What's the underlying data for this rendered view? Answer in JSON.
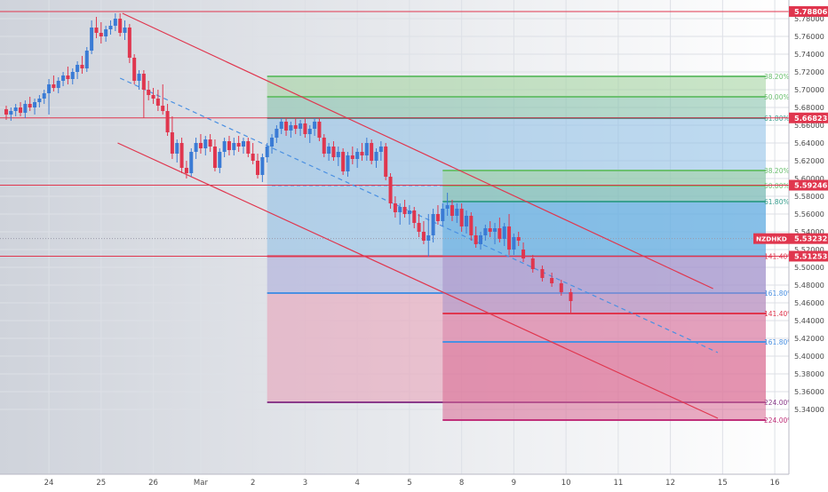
{
  "chart_data": {
    "type": "candlestick",
    "symbol": "NZDHKD",
    "y_range": [
      5.328,
      5.79
    ],
    "y_tick_values": [
      5.34,
      5.36,
      5.38,
      5.4,
      5.42,
      5.44,
      5.46,
      5.48,
      5.5,
      5.52,
      5.54,
      5.56,
      5.58,
      5.6,
      5.62,
      5.64,
      5.66,
      5.68,
      5.7,
      5.72,
      5.74,
      5.76,
      5.78
    ],
    "y_tick_labels": [
      "5.34000",
      "5.36000",
      "5.38000",
      "5.40000",
      "5.42000",
      "5.44000",
      "5.46000",
      "5.48000",
      "5.50000",
      "5.52000",
      "5.54000",
      "5.56000",
      "5.58000",
      "5.60000",
      "5.62000",
      "5.64000",
      "5.66000",
      "5.68000",
      "5.70000",
      "5.72000",
      "5.74000",
      "5.76000",
      "5.78000"
    ],
    "x_ticks": [
      {
        "label": "24",
        "t": 0.9
      },
      {
        "label": "25",
        "t": 2.0
      },
      {
        "label": "26",
        "t": 3.1
      },
      {
        "label": "Mar",
        "t": 4.1
      },
      {
        "label": "2",
        "t": 5.2
      },
      {
        "label": "3",
        "t": 6.3
      },
      {
        "label": "4",
        "t": 7.4
      },
      {
        "label": "5",
        "t": 8.5
      },
      {
        "label": "8",
        "t": 9.6
      },
      {
        "label": "9",
        "t": 10.7
      },
      {
        "label": "10",
        "t": 11.8
      },
      {
        "label": "11",
        "t": 12.9
      },
      {
        "label": "12",
        "t": 14.0
      },
      {
        "label": "15",
        "t": 15.1
      },
      {
        "label": "16",
        "t": 16.2
      }
    ],
    "candles": [
      {
        "t": 0.0,
        "o": 5.678,
        "h": 5.682,
        "l": 5.666,
        "c": 5.672
      },
      {
        "t": 0.1,
        "o": 5.672,
        "h": 5.68,
        "l": 5.665,
        "c": 5.676
      },
      {
        "t": 0.2,
        "o": 5.676,
        "h": 5.684,
        "l": 5.67,
        "c": 5.68
      },
      {
        "t": 0.3,
        "o": 5.68,
        "h": 5.686,
        "l": 5.67,
        "c": 5.674
      },
      {
        "t": 0.4,
        "o": 5.674,
        "h": 5.688,
        "l": 5.668,
        "c": 5.684
      },
      {
        "t": 0.5,
        "o": 5.684,
        "h": 5.692,
        "l": 5.676,
        "c": 5.68
      },
      {
        "t": 0.6,
        "o": 5.68,
        "h": 5.69,
        "l": 5.672,
        "c": 5.686
      },
      {
        "t": 0.7,
        "o": 5.686,
        "h": 5.694,
        "l": 5.68,
        "c": 5.69
      },
      {
        "t": 0.8,
        "o": 5.69,
        "h": 5.7,
        "l": 5.684,
        "c": 5.696
      },
      {
        "t": 0.9,
        "o": 5.696,
        "h": 5.712,
        "l": 5.672,
        "c": 5.706
      },
      {
        "t": 1.0,
        "o": 5.706,
        "h": 5.716,
        "l": 5.698,
        "c": 5.702
      },
      {
        "t": 1.1,
        "o": 5.702,
        "h": 5.714,
        "l": 5.696,
        "c": 5.71
      },
      {
        "t": 1.2,
        "o": 5.71,
        "h": 5.72,
        "l": 5.704,
        "c": 5.716
      },
      {
        "t": 1.3,
        "o": 5.716,
        "h": 5.726,
        "l": 5.706,
        "c": 5.712
      },
      {
        "t": 1.4,
        "o": 5.712,
        "h": 5.724,
        "l": 5.706,
        "c": 5.72
      },
      {
        "t": 1.5,
        "o": 5.72,
        "h": 5.732,
        "l": 5.712,
        "c": 5.728
      },
      {
        "t": 1.6,
        "o": 5.728,
        "h": 5.738,
        "l": 5.718,
        "c": 5.724
      },
      {
        "t": 1.7,
        "o": 5.724,
        "h": 5.748,
        "l": 5.72,
        "c": 5.744
      },
      {
        "t": 1.8,
        "o": 5.744,
        "h": 5.778,
        "l": 5.74,
        "c": 5.77
      },
      {
        "t": 1.9,
        "o": 5.77,
        "h": 5.782,
        "l": 5.758,
        "c": 5.764
      },
      {
        "t": 2.0,
        "o": 5.764,
        "h": 5.776,
        "l": 5.752,
        "c": 5.76
      },
      {
        "t": 2.1,
        "o": 5.76,
        "h": 5.772,
        "l": 5.754,
        "c": 5.768
      },
      {
        "t": 2.2,
        "o": 5.768,
        "h": 5.778,
        "l": 5.762,
        "c": 5.772
      },
      {
        "t": 2.3,
        "o": 5.772,
        "h": 5.786,
        "l": 5.766,
        "c": 5.78
      },
      {
        "t": 2.4,
        "o": 5.78,
        "h": 5.786,
        "l": 5.76,
        "c": 5.764
      },
      {
        "t": 2.5,
        "o": 5.764,
        "h": 5.778,
        "l": 5.756,
        "c": 5.77
      },
      {
        "t": 2.6,
        "o": 5.77,
        "h": 5.774,
        "l": 5.73,
        "c": 5.736
      },
      {
        "t": 2.7,
        "o": 5.736,
        "h": 5.74,
        "l": 5.706,
        "c": 5.71
      },
      {
        "t": 2.8,
        "o": 5.71,
        "h": 5.722,
        "l": 5.7,
        "c": 5.718
      },
      {
        "t": 2.9,
        "o": 5.718,
        "h": 5.722,
        "l": 5.668,
        "c": 5.7
      },
      {
        "t": 3.0,
        "o": 5.7,
        "h": 5.71,
        "l": 5.688,
        "c": 5.694
      },
      {
        "t": 3.1,
        "o": 5.694,
        "h": 5.702,
        "l": 5.684,
        "c": 5.69
      },
      {
        "t": 3.2,
        "o": 5.69,
        "h": 5.7,
        "l": 5.676,
        "c": 5.682
      },
      {
        "t": 3.3,
        "o": 5.682,
        "h": 5.706,
        "l": 5.672,
        "c": 5.676
      },
      {
        "t": 3.4,
        "o": 5.676,
        "h": 5.684,
        "l": 5.648,
        "c": 5.652
      },
      {
        "t": 3.5,
        "o": 5.652,
        "h": 5.67,
        "l": 5.622,
        "c": 5.628
      },
      {
        "t": 3.6,
        "o": 5.628,
        "h": 5.644,
        "l": 5.618,
        "c": 5.64
      },
      {
        "t": 3.7,
        "o": 5.64,
        "h": 5.646,
        "l": 5.606,
        "c": 5.612
      },
      {
        "t": 3.8,
        "o": 5.612,
        "h": 5.62,
        "l": 5.6,
        "c": 5.606
      },
      {
        "t": 3.9,
        "o": 5.606,
        "h": 5.634,
        "l": 5.602,
        "c": 5.63
      },
      {
        "t": 4.0,
        "o": 5.63,
        "h": 5.646,
        "l": 5.622,
        "c": 5.64
      },
      {
        "t": 4.1,
        "o": 5.64,
        "h": 5.65,
        "l": 5.628,
        "c": 5.634
      },
      {
        "t": 4.2,
        "o": 5.634,
        "h": 5.648,
        "l": 5.626,
        "c": 5.644
      },
      {
        "t": 4.3,
        "o": 5.644,
        "h": 5.65,
        "l": 5.63,
        "c": 5.636
      },
      {
        "t": 4.4,
        "o": 5.636,
        "h": 5.644,
        "l": 5.608,
        "c": 5.612
      },
      {
        "t": 4.5,
        "o": 5.612,
        "h": 5.634,
        "l": 5.606,
        "c": 5.63
      },
      {
        "t": 4.6,
        "o": 5.63,
        "h": 5.646,
        "l": 5.624,
        "c": 5.642
      },
      {
        "t": 4.7,
        "o": 5.642,
        "h": 5.648,
        "l": 5.626,
        "c": 5.632
      },
      {
        "t": 4.8,
        "o": 5.632,
        "h": 5.646,
        "l": 5.626,
        "c": 5.64
      },
      {
        "t": 4.9,
        "o": 5.64,
        "h": 5.648,
        "l": 5.63,
        "c": 5.636
      },
      {
        "t": 5.0,
        "o": 5.636,
        "h": 5.646,
        "l": 5.628,
        "c": 5.642
      },
      {
        "t": 5.1,
        "o": 5.642,
        "h": 5.646,
        "l": 5.624,
        "c": 5.628
      },
      {
        "t": 5.2,
        "o": 5.628,
        "h": 5.64,
        "l": 5.616,
        "c": 5.62
      },
      {
        "t": 5.3,
        "o": 5.62,
        "h": 5.628,
        "l": 5.6,
        "c": 5.604
      },
      {
        "t": 5.4,
        "o": 5.604,
        "h": 5.628,
        "l": 5.596,
        "c": 5.624
      },
      {
        "t": 5.5,
        "o": 5.624,
        "h": 5.64,
        "l": 5.618,
        "c": 5.636
      },
      {
        "t": 5.6,
        "o": 5.636,
        "h": 5.65,
        "l": 5.628,
        "c": 5.646
      },
      {
        "t": 5.7,
        "o": 5.646,
        "h": 5.66,
        "l": 5.64,
        "c": 5.656
      },
      {
        "t": 5.8,
        "o": 5.656,
        "h": 5.668,
        "l": 5.65,
        "c": 5.664
      },
      {
        "t": 5.9,
        "o": 5.664,
        "h": 5.668,
        "l": 5.648,
        "c": 5.654
      },
      {
        "t": 6.0,
        "o": 5.654,
        "h": 5.664,
        "l": 5.646,
        "c": 5.66
      },
      {
        "t": 6.1,
        "o": 5.66,
        "h": 5.668,
        "l": 5.65,
        "c": 5.656
      },
      {
        "t": 6.2,
        "o": 5.656,
        "h": 5.666,
        "l": 5.648,
        "c": 5.662
      },
      {
        "t": 6.3,
        "o": 5.662,
        "h": 5.668,
        "l": 5.646,
        "c": 5.65
      },
      {
        "t": 6.4,
        "o": 5.65,
        "h": 5.66,
        "l": 5.64,
        "c": 5.656
      },
      {
        "t": 6.5,
        "o": 5.656,
        "h": 5.668,
        "l": 5.648,
        "c": 5.664
      },
      {
        "t": 6.6,
        "o": 5.664,
        "h": 5.668,
        "l": 5.642,
        "c": 5.646
      },
      {
        "t": 6.7,
        "o": 5.646,
        "h": 5.65,
        "l": 5.624,
        "c": 5.628
      },
      {
        "t": 6.8,
        "o": 5.628,
        "h": 5.64,
        "l": 5.62,
        "c": 5.636
      },
      {
        "t": 6.9,
        "o": 5.636,
        "h": 5.642,
        "l": 5.62,
        "c": 5.624
      },
      {
        "t": 7.0,
        "o": 5.624,
        "h": 5.636,
        "l": 5.614,
        "c": 5.63
      },
      {
        "t": 7.1,
        "o": 5.63,
        "h": 5.634,
        "l": 5.604,
        "c": 5.608
      },
      {
        "t": 7.2,
        "o": 5.608,
        "h": 5.63,
        "l": 5.602,
        "c": 5.626
      },
      {
        "t": 7.3,
        "o": 5.626,
        "h": 5.636,
        "l": 5.616,
        "c": 5.622
      },
      {
        "t": 7.4,
        "o": 5.622,
        "h": 5.634,
        "l": 5.612,
        "c": 5.63
      },
      {
        "t": 7.5,
        "o": 5.63,
        "h": 5.64,
        "l": 5.62,
        "c": 5.626
      },
      {
        "t": 7.6,
        "o": 5.626,
        "h": 5.646,
        "l": 5.62,
        "c": 5.64
      },
      {
        "t": 7.7,
        "o": 5.64,
        "h": 5.644,
        "l": 5.616,
        "c": 5.62
      },
      {
        "t": 7.8,
        "o": 5.62,
        "h": 5.634,
        "l": 5.612,
        "c": 5.63
      },
      {
        "t": 7.9,
        "o": 5.63,
        "h": 5.642,
        "l": 5.62,
        "c": 5.636
      },
      {
        "t": 8.0,
        "o": 5.636,
        "h": 5.64,
        "l": 5.598,
        "c": 5.602
      },
      {
        "t": 8.1,
        "o": 5.602,
        "h": 5.606,
        "l": 5.566,
        "c": 5.572
      },
      {
        "t": 8.2,
        "o": 5.572,
        "h": 5.58,
        "l": 5.556,
        "c": 5.562
      },
      {
        "t": 8.3,
        "o": 5.562,
        "h": 5.572,
        "l": 5.548,
        "c": 5.568
      },
      {
        "t": 8.4,
        "o": 5.568,
        "h": 5.576,
        "l": 5.556,
        "c": 5.56
      },
      {
        "t": 8.5,
        "o": 5.56,
        "h": 5.57,
        "l": 5.548,
        "c": 5.564
      },
      {
        "t": 8.6,
        "o": 5.564,
        "h": 5.568,
        "l": 5.544,
        "c": 5.55
      },
      {
        "t": 8.7,
        "o": 5.55,
        "h": 5.56,
        "l": 5.534,
        "c": 5.54
      },
      {
        "t": 8.8,
        "o": 5.54,
        "h": 5.552,
        "l": 5.526,
        "c": 5.53
      },
      {
        "t": 8.9,
        "o": 5.53,
        "h": 5.56,
        "l": 5.512,
        "c": 5.536
      },
      {
        "t": 9.0,
        "o": 5.536,
        "h": 5.566,
        "l": 5.528,
        "c": 5.56
      },
      {
        "t": 9.1,
        "o": 5.56,
        "h": 5.57,
        "l": 5.548,
        "c": 5.552
      },
      {
        "t": 9.2,
        "o": 5.552,
        "h": 5.572,
        "l": 5.546,
        "c": 5.566
      },
      {
        "t": 9.3,
        "o": 5.566,
        "h": 5.584,
        "l": 5.558,
        "c": 5.57
      },
      {
        "t": 9.4,
        "o": 5.57,
        "h": 5.576,
        "l": 5.552,
        "c": 5.558
      },
      {
        "t": 9.5,
        "o": 5.558,
        "h": 5.572,
        "l": 5.55,
        "c": 5.566
      },
      {
        "t": 9.6,
        "o": 5.566,
        "h": 5.572,
        "l": 5.54,
        "c": 5.546
      },
      {
        "t": 9.7,
        "o": 5.546,
        "h": 5.564,
        "l": 5.538,
        "c": 5.558
      },
      {
        "t": 9.8,
        "o": 5.558,
        "h": 5.562,
        "l": 5.53,
        "c": 5.536
      },
      {
        "t": 9.9,
        "o": 5.536,
        "h": 5.546,
        "l": 5.522,
        "c": 5.526
      },
      {
        "t": 10.0,
        "o": 5.526,
        "h": 5.54,
        "l": 5.52,
        "c": 5.536
      },
      {
        "t": 10.1,
        "o": 5.536,
        "h": 5.548,
        "l": 5.53,
        "c": 5.544
      },
      {
        "t": 10.2,
        "o": 5.544,
        "h": 5.552,
        "l": 5.534,
        "c": 5.54
      },
      {
        "t": 10.3,
        "o": 5.54,
        "h": 5.55,
        "l": 5.526,
        "c": 5.544
      },
      {
        "t": 10.4,
        "o": 5.544,
        "h": 5.556,
        "l": 5.528,
        "c": 5.532
      },
      {
        "t": 10.5,
        "o": 5.532,
        "h": 5.55,
        "l": 5.524,
        "c": 5.546
      },
      {
        "t": 10.6,
        "o": 5.546,
        "h": 5.56,
        "l": 5.514,
        "c": 5.52
      },
      {
        "t": 10.7,
        "o": 5.52,
        "h": 5.538,
        "l": 5.514,
        "c": 5.534
      },
      {
        "t": 10.8,
        "o": 5.534,
        "h": 5.54,
        "l": 5.524,
        "c": 5.53
      }
    ],
    "projection_candles": [
      {
        "t": 10.9,
        "o": 5.52,
        "h": 5.528,
        "l": 5.506,
        "c": 5.51
      },
      {
        "t": 11.1,
        "o": 5.51,
        "h": 5.514,
        "l": 5.494,
        "c": 5.498
      },
      {
        "t": 11.3,
        "o": 5.498,
        "h": 5.502,
        "l": 5.484,
        "c": 5.488
      },
      {
        "t": 11.5,
        "o": 5.488,
        "h": 5.494,
        "l": 5.478,
        "c": 5.482
      },
      {
        "t": 11.7,
        "o": 5.482,
        "h": 5.486,
        "l": 5.468,
        "c": 5.472
      },
      {
        "t": 11.9,
        "o": 5.472,
        "h": 5.476,
        "l": 5.448,
        "c": 5.462
      }
    ],
    "horizontal_levels": [
      {
        "value": 5.78806,
        "label": "5.78806"
      },
      {
        "value": 5.66823,
        "label": "5.66823"
      },
      {
        "value": 5.59246,
        "label": "5.59246"
      },
      {
        "value": 5.53232,
        "label": "5.53232",
        "symbol": "NZDHKD"
      },
      {
        "value": 5.51253,
        "label": "5.51253"
      }
    ],
    "fib_box_1": {
      "t_start": 5.5,
      "t_end": 16.3,
      "zones": [
        {
          "from": 5.715,
          "to": 5.692,
          "color": "#9fd19a"
        },
        {
          "from": 5.692,
          "to": 5.668,
          "color": "#7fbfa6"
        },
        {
          "from": 5.668,
          "to": 5.5125,
          "color": "#8bbde6"
        },
        {
          "from": 5.5125,
          "to": 5.471,
          "color": "#a8a8d8"
        },
        {
          "from": 5.471,
          "to": 5.348,
          "color": "#e79cb4"
        }
      ],
      "lines": [
        {
          "value": 5.715,
          "color": "#6cc070",
          "label": "38.20%"
        },
        {
          "value": 5.692,
          "color": "#6cc070",
          "label": "50.00%"
        },
        {
          "value": 5.668,
          "color": "#3aa090",
          "label": "61.80%"
        },
        {
          "value": 5.5125,
          "color": "#e0364e",
          "label": "141.40%"
        },
        {
          "value": 5.471,
          "color": "#4a90e2",
          "label": "161.80%"
        },
        {
          "value": 5.348,
          "color": "#8a3a8a",
          "label": "224.00%"
        }
      ]
    },
    "fib_box_2": {
      "t_start": 9.2,
      "t_end": 16.3,
      "zones": [
        {
          "from": 5.609,
          "to": 5.592,
          "color": "#9fd19a"
        },
        {
          "from": 5.592,
          "to": 5.574,
          "color": "#7fbfa6"
        },
        {
          "from": 5.574,
          "to": 5.5125,
          "color": "#5aaae0"
        },
        {
          "from": 5.5125,
          "to": 5.448,
          "color": "#a690c8"
        },
        {
          "from": 5.448,
          "to": 5.416,
          "color": "#d880a8"
        },
        {
          "from": 5.416,
          "to": 5.328,
          "color": "#d86892"
        }
      ],
      "lines": [
        {
          "value": 5.609,
          "color": "#6cc070",
          "label": "38.20%"
        },
        {
          "value": 5.592,
          "color": "#6cc070",
          "label": "50.00%"
        },
        {
          "value": 5.574,
          "color": "#3aa090",
          "label": "61.80%"
        },
        {
          "value": 5.448,
          "color": "#e0364e",
          "label": "141.40%"
        },
        {
          "value": 5.416,
          "color": "#4a90e2",
          "label": "161.80%"
        },
        {
          "value": 5.328,
          "color": "#c0307a",
          "label": "224.00%"
        }
      ]
    },
    "channel_upper": {
      "t1": 2.45,
      "v1": 5.786,
      "t2": 14.9,
      "v2": 5.476,
      "color": "#e0364e"
    },
    "channel_lower": {
      "t1": 2.35,
      "v1": 5.64,
      "t2": 15.0,
      "v2": 5.33,
      "color": "#e0364e"
    },
    "channel_mid": {
      "t1": 2.4,
      "v1": 5.713,
      "t2": 15.0,
      "v2": 5.404,
      "color": "#4a90e2",
      "dashed": true
    },
    "flat_dashed_level": {
      "value": 5.592,
      "t_start": 5.6,
      "t_end": 9.2
    },
    "colors": {
      "up": "#3a7bd5",
      "down": "#e0364e",
      "grid": "#e8e8ee",
      "level": "#e0364e",
      "axis_text": "#4a4a4a"
    }
  }
}
